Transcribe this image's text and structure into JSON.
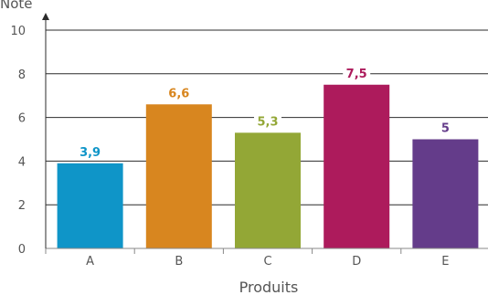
{
  "chart_data": {
    "type": "bar",
    "title": "",
    "ylabel": "Note",
    "xlabel": "Produits",
    "categories": [
      "A",
      "B",
      "C",
      "D",
      "E"
    ],
    "values": [
      3.9,
      6.6,
      5.3,
      7.5,
      5
    ],
    "value_labels": [
      "3,9",
      "6,6",
      "5,3",
      "7,5",
      "5"
    ],
    "colors": [
      "#0f95c8",
      "#d8861f",
      "#93a736",
      "#ad1b5c",
      "#643c8a"
    ],
    "ylim": [
      0,
      10
    ],
    "yticks": [
      0,
      2,
      4,
      6,
      8,
      10
    ],
    "grid": true,
    "legend": "none"
  }
}
